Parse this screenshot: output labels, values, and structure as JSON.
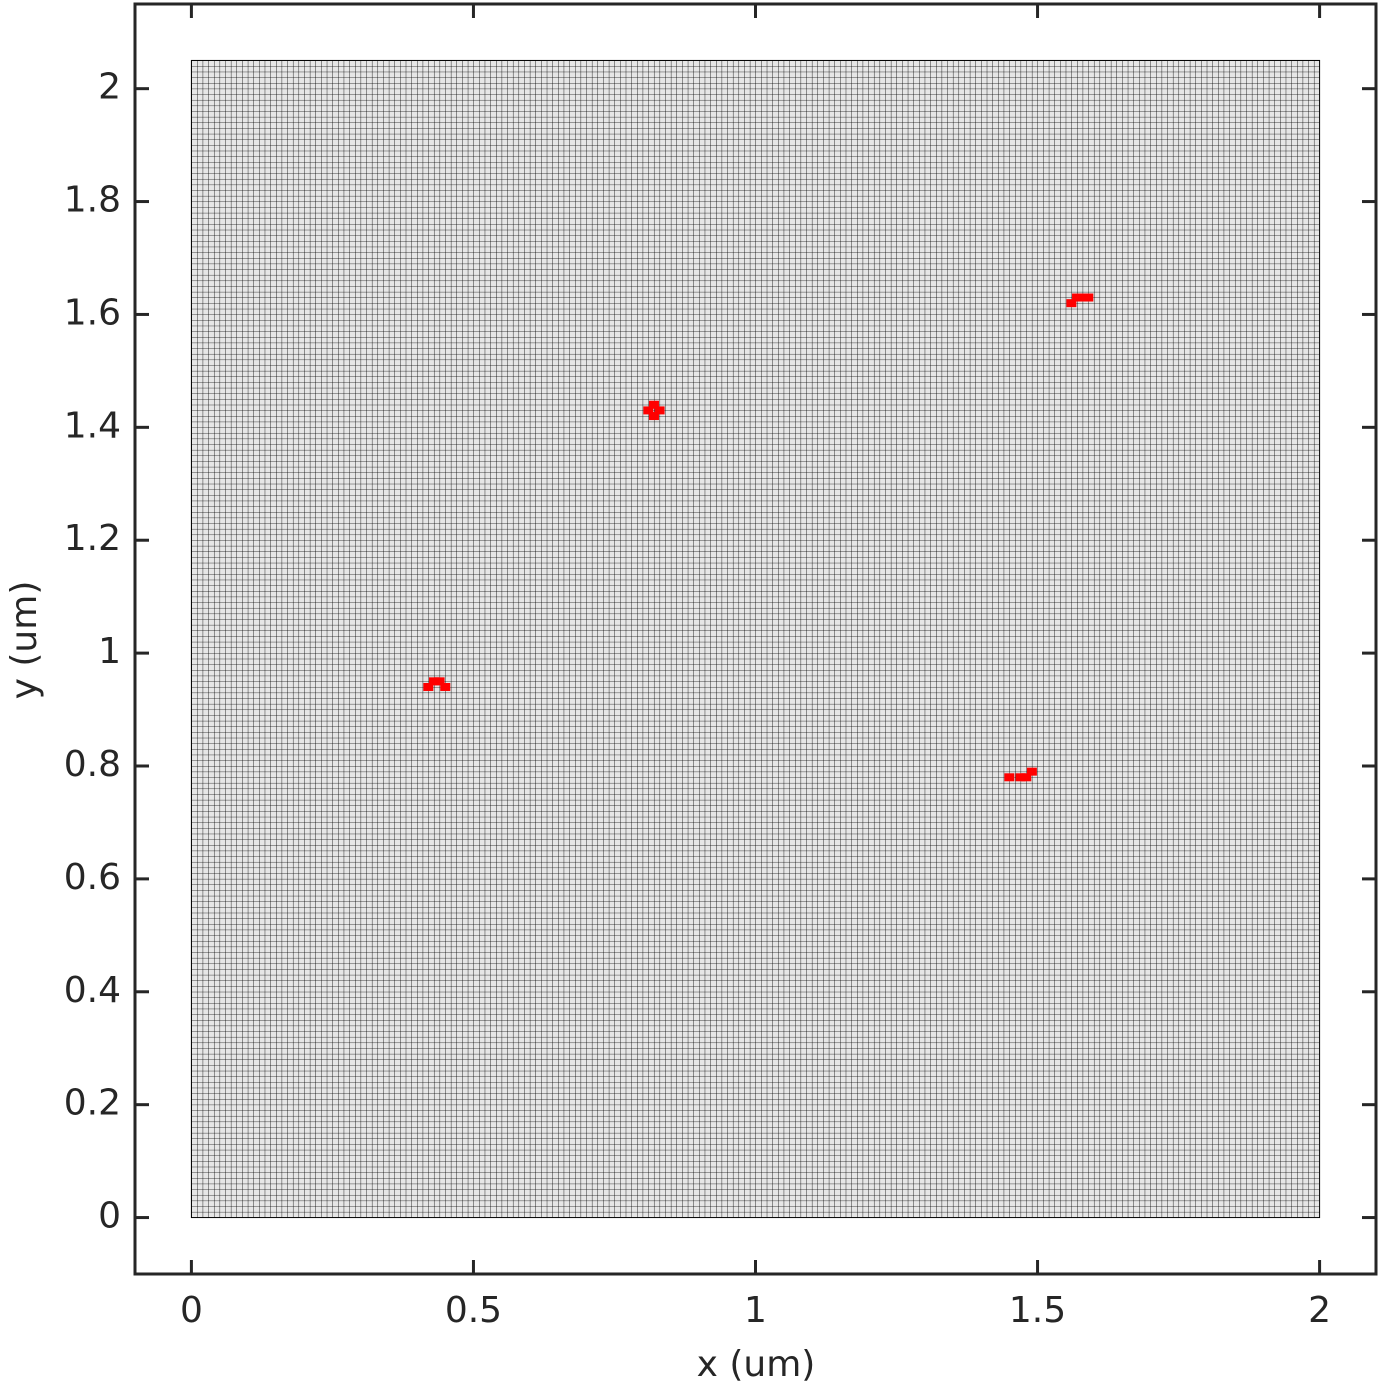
{
  "chart_data": {
    "type": "mesh",
    "xlabel": "x (um)",
    "ylabel": "y (um)",
    "xlim": [
      -0.1,
      2.1
    ],
    "ylim": [
      -0.1,
      2.15
    ],
    "xticks": [
      0,
      0.5,
      1,
      1.5,
      2
    ],
    "yticks": [
      0,
      0.2,
      0.4,
      0.6,
      0.8,
      1,
      1.2,
      1.4,
      1.6,
      1.8,
      2
    ],
    "mesh": {
      "x": [
        0,
        2
      ],
      "y": [
        0,
        2.05
      ],
      "cell": 0.01,
      "color": "#000000",
      "fill": "#e6e6e6"
    },
    "series": [
      {
        "color": "#ff0000",
        "x": [
          0.42,
          0.43,
          0.44,
          0.45,
          0.81,
          0.82,
          0.83,
          0.82,
          1.45,
          1.47,
          1.48,
          1.49,
          1.56,
          1.57,
          1.58,
          1.59
        ],
        "values": [
          0.94,
          0.95,
          0.95,
          0.94,
          1.43,
          1.44,
          1.43,
          1.42,
          0.78,
          0.78,
          0.78,
          0.79,
          1.62,
          1.63,
          1.63,
          1.63
        ]
      }
    ]
  }
}
